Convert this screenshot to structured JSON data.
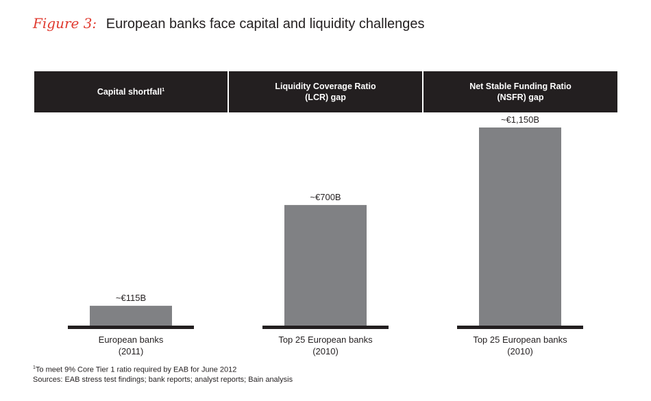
{
  "figure": {
    "label": "Figure 3:",
    "title": "European banks face capital and liquidity challenges"
  },
  "colors": {
    "header_bg": "#231f20",
    "bar": "#808184",
    "baseline": "#231f20",
    "figure_label": "#e03a2f"
  },
  "chart_data": {
    "type": "bar",
    "title": "European banks face capital and liquidity challenges",
    "unit": "€B",
    "panels": [
      {
        "header": "Capital shortfall",
        "header_sup": "1",
        "category": "European banks",
        "year": "(2011)",
        "value": 115,
        "label": "~€115B"
      },
      {
        "header": "Liquidity Coverage Ratio\n(LCR) gap",
        "header_sup": "",
        "category": "Top 25 European banks",
        "year": "(2010)",
        "value": 700,
        "label": "~€700B"
      },
      {
        "header": "Net Stable Funding Ratio\n(NSFR) gap",
        "header_sup": "",
        "category": "Top 25 European banks",
        "year": "(2010)",
        "value": 1150,
        "label": "~€1,150B"
      }
    ]
  },
  "footnote": {
    "marker": "1",
    "text": "To meet 9% Core Tier 1 ratio required by EAB for June 2012"
  },
  "sources": "Sources: EAB stress test findings; bank reports; analyst reports; Bain analysis"
}
